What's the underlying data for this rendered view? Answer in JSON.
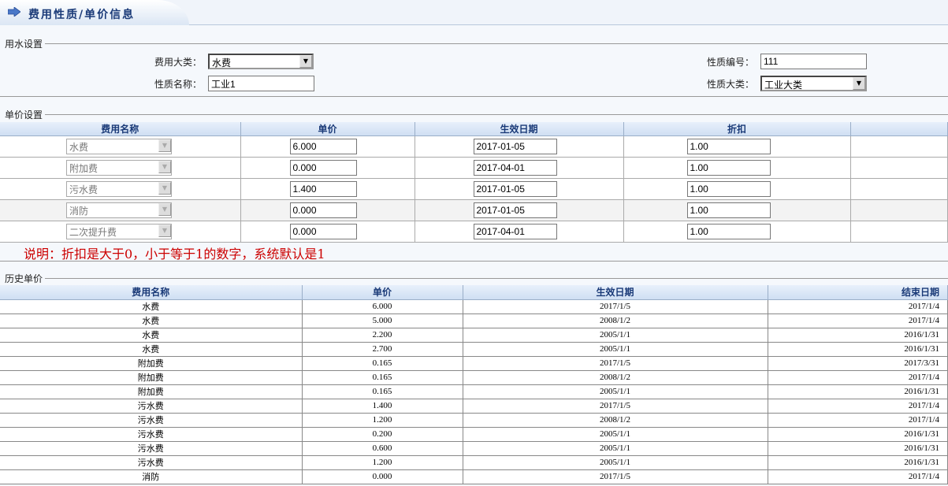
{
  "header": {
    "title": "费用性质/单价信息",
    "icon": "arrow-right-icon"
  },
  "water": {
    "legend": "用水设置",
    "category_label": "费用大类：",
    "category_value": "水费",
    "name_label": "性质名称：",
    "name_value": "工业1",
    "code_label": "性质编号：",
    "code_value": "111",
    "major_label": "性质大类：",
    "major_value": "工业大类"
  },
  "price": {
    "legend": "单价设置",
    "columns": [
      "费用名称",
      "单价",
      "生效日期",
      "折扣"
    ],
    "rows": [
      {
        "name": "水费",
        "price": "6.000",
        "date": "2017-01-05",
        "discount": "1.00"
      },
      {
        "name": "附加费",
        "price": "0.000",
        "date": "2017-04-01",
        "discount": "1.00"
      },
      {
        "name": "污水费",
        "price": "1.400",
        "date": "2017-01-05",
        "discount": "1.00"
      },
      {
        "name": "消防",
        "price": "0.000",
        "date": "2017-01-05",
        "discount": "1.00"
      },
      {
        "name": "二次提升费",
        "price": "0.000",
        "date": "2017-04-01",
        "discount": "1.00"
      }
    ]
  },
  "note": "说明：折扣是大于0，小于等于1的数字，系统默认是1",
  "history": {
    "legend": "历史单价",
    "columns": [
      "费用名称",
      "单价",
      "生效日期",
      "结束日期"
    ],
    "rows": [
      [
        "水费",
        "6.000",
        "2017/1/5",
        "2017/1/4"
      ],
      [
        "水费",
        "5.000",
        "2008/1/2",
        "2017/1/4"
      ],
      [
        "水费",
        "2.200",
        "2005/1/1",
        "2016/1/31"
      ],
      [
        "水费",
        "2.700",
        "2005/1/1",
        "2016/1/31"
      ],
      [
        "附加费",
        "0.165",
        "2017/1/5",
        "2017/3/31"
      ],
      [
        "附加费",
        "0.165",
        "2008/1/2",
        "2017/1/4"
      ],
      [
        "附加费",
        "0.165",
        "2005/1/1",
        "2016/1/31"
      ],
      [
        "污水费",
        "1.400",
        "2017/1/5",
        "2017/1/4"
      ],
      [
        "污水费",
        "1.200",
        "2008/1/2",
        "2017/1/4"
      ],
      [
        "污水费",
        "0.200",
        "2005/1/1",
        "2016/1/31"
      ],
      [
        "污水费",
        "0.600",
        "2005/1/1",
        "2016/1/31"
      ],
      [
        "污水费",
        "1.200",
        "2005/1/1",
        "2016/1/31"
      ],
      [
        "消防",
        "0.000",
        "2017/1/5",
        "2017/1/4"
      ]
    ]
  }
}
